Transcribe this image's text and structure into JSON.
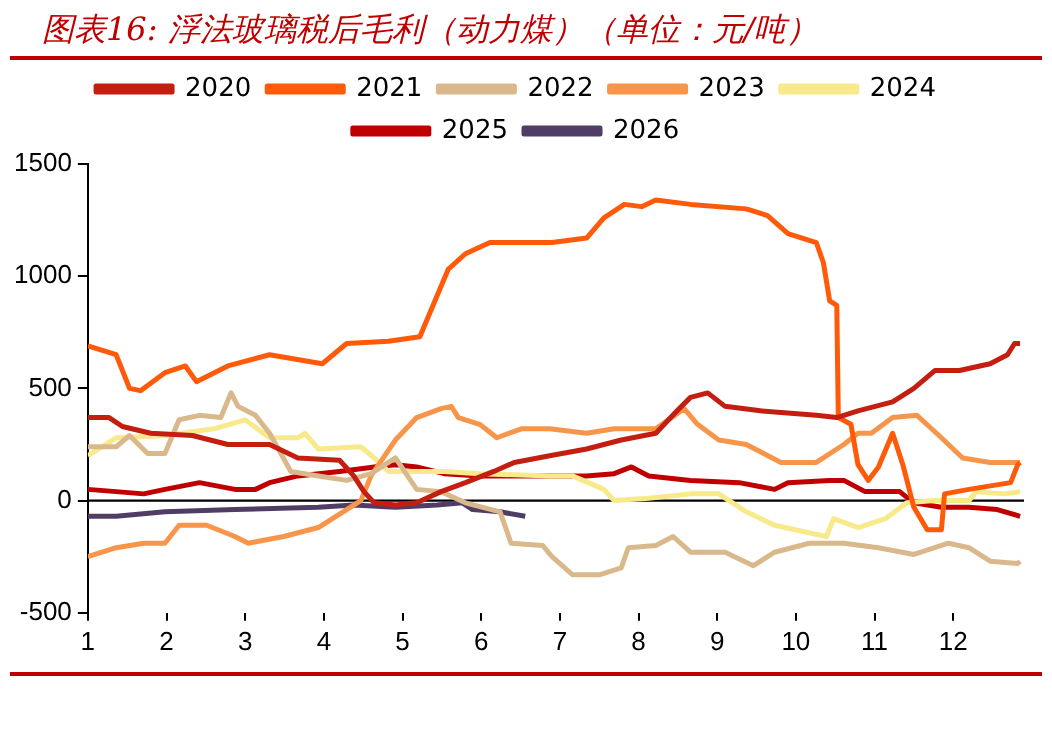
{
  "chart_data": {
    "type": "line",
    "title": "图表16:  浮法玻璃税后毛利（动力煤）（单位：元/吨）",
    "xlim": [
      1,
      12.9
    ],
    "xticks": [
      1,
      2,
      3,
      4,
      5,
      6,
      7,
      8,
      9,
      10,
      11,
      12
    ],
    "ylim": [
      -500,
      1500
    ],
    "yticks": [
      -500,
      0,
      500,
      1000,
      1500
    ],
    "grid": false,
    "ref_lines": [
      {
        "axis": "y",
        "value": 0,
        "color": "#000000"
      }
    ],
    "legend": "top",
    "line_style": "solid",
    "marker": "none",
    "series": [
      {
        "name": "2020",
        "color": "#c41e10",
        "x": [
          1,
          1.27,
          1.44,
          1.8,
          2.33,
          2.78,
          3.31,
          3.67,
          4.2,
          4.38,
          4.51,
          4.64,
          4.91,
          5.18,
          5.49,
          5.8,
          6.16,
          6.42,
          6.87,
          7.34,
          7.78,
          8.22,
          8.49,
          8.66,
          8.88,
          9.1,
          9.55,
          10.26,
          10.52,
          10.79,
          11.23,
          11.5,
          11.77,
          12.08,
          12.47,
          12.69,
          12.78,
          12.85
        ],
        "values": [
          370,
          370,
          330,
          300,
          290,
          250,
          250,
          190,
          180,
          110,
          40,
          -10,
          -20,
          -10,
          40,
          80,
          130,
          170,
          200,
          230,
          270,
          300,
          400,
          460,
          480,
          420,
          400,
          380,
          370,
          400,
          440,
          500,
          580,
          580,
          610,
          650,
          700,
          700
        ]
      },
      {
        "name": "2021",
        "color": "#ff5a0a",
        "x": [
          1,
          1.36,
          1.53,
          1.67,
          1.98,
          2.24,
          2.38,
          2.78,
          3.31,
          3.98,
          4.29,
          4.82,
          5.22,
          5.58,
          5.8,
          6.11,
          6.9,
          7.34,
          7.56,
          7.82,
          8.04,
          8.22,
          8.66,
          9.37,
          9.64,
          9.9,
          10.26,
          10.35,
          10.43,
          10.52,
          10.54,
          10.7,
          10.79,
          10.92,
          11.05,
          11.23,
          11.36,
          11.5,
          11.67,
          11.85,
          11.89,
          12.2,
          12.73,
          12.82,
          12.85
        ],
        "values": [
          690,
          650,
          500,
          490,
          570,
          600,
          530,
          600,
          650,
          610,
          700,
          710,
          730,
          1030,
          1100,
          1150,
          1150,
          1170,
          1260,
          1320,
          1310,
          1340,
          1320,
          1300,
          1270,
          1190,
          1150,
          1060,
          890,
          870,
          370,
          340,
          160,
          90,
          150,
          300,
          160,
          -30,
          -130,
          -130,
          30,
          50,
          80,
          160,
          170
        ]
      },
      {
        "name": "2022",
        "color": "#d9b98c",
        "x": [
          1,
          1.36,
          1.53,
          1.76,
          1.98,
          2.16,
          2.42,
          2.69,
          2.82,
          2.91,
          3.13,
          3.31,
          3.58,
          3.93,
          4.29,
          4.6,
          4.91,
          5.18,
          5.49,
          5.8,
          6.24,
          6.38,
          6.78,
          6.9,
          7.16,
          7.51,
          7.78,
          7.87,
          8.22,
          8.44,
          8.66,
          9.1,
          9.46,
          9.73,
          10.17,
          10.61,
          11.05,
          11.5,
          11.94,
          12.2,
          12.47,
          12.82,
          12.85
        ],
        "values": [
          240,
          240,
          290,
          210,
          210,
          360,
          380,
          370,
          480,
          420,
          380,
          300,
          130,
          110,
          90,
          120,
          190,
          50,
          40,
          -10,
          -50,
          -190,
          -200,
          -250,
          -330,
          -330,
          -300,
          -210,
          -200,
          -160,
          -230,
          -230,
          -290,
          -230,
          -190,
          -190,
          -210,
          -240,
          -190,
          -210,
          -270,
          -280,
          -270
        ]
      },
      {
        "name": "2023",
        "color": "#f7964a",
        "x": [
          1,
          1.36,
          1.71,
          1.98,
          2.16,
          2.51,
          2.87,
          3.04,
          3.49,
          3.93,
          4.29,
          4.47,
          4.6,
          4.91,
          5.18,
          5.49,
          5.62,
          5.71,
          5.98,
          6.2,
          6.51,
          6.87,
          7.34,
          7.69,
          8.22,
          8.58,
          8.75,
          9.02,
          9.37,
          9.81,
          10.26,
          10.61,
          10.79,
          10.96,
          11.23,
          11.54,
          11.85,
          12.12,
          12.47,
          12.85
        ],
        "values": [
          -250,
          -210,
          -190,
          -190,
          -110,
          -110,
          -160,
          -190,
          -160,
          -120,
          -40,
          0,
          110,
          270,
          370,
          410,
          420,
          370,
          340,
          280,
          320,
          320,
          300,
          320,
          320,
          410,
          340,
          270,
          250,
          170,
          170,
          250,
          300,
          300,
          370,
          380,
          280,
          190,
          170,
          170
        ]
      },
      {
        "name": "2024",
        "color": "#f8e98a",
        "x": [
          1,
          1.36,
          1.98,
          2.6,
          3,
          3.31,
          3.67,
          3.76,
          3.93,
          4.47,
          4.64,
          4.82,
          5.09,
          5.53,
          5.98,
          6.87,
          7.16,
          7.56,
          7.69,
          8.13,
          8.66,
          9.02,
          9.37,
          9.73,
          9.99,
          10.39,
          10.48,
          10.79,
          11.14,
          11.41,
          11.76,
          12.2,
          12.29,
          12.65,
          12.85
        ],
        "values": [
          200,
          280,
          290,
          320,
          360,
          280,
          280,
          300,
          230,
          240,
          190,
          130,
          130,
          130,
          120,
          110,
          110,
          50,
          0,
          10,
          30,
          30,
          -50,
          -110,
          -130,
          -160,
          -80,
          -120,
          -80,
          -10,
          0,
          0,
          40,
          30,
          40
        ]
      },
      {
        "name": "2025",
        "color": "#c00000",
        "x": [
          1,
          1.36,
          1.71,
          1.98,
          2.42,
          2.87,
          3.13,
          3.31,
          3.67,
          4.2,
          4.64,
          4.91,
          5.18,
          5.53,
          5.98,
          6.51,
          7.34,
          7.69,
          7.91,
          8.13,
          8.66,
          9.28,
          9.73,
          9.9,
          10.43,
          10.61,
          10.88,
          11.32,
          11.5,
          11.85,
          12.2,
          12.56,
          12.85
        ],
        "values": [
          50,
          40,
          30,
          50,
          80,
          50,
          50,
          80,
          110,
          130,
          150,
          160,
          150,
          120,
          110,
          110,
          110,
          120,
          150,
          110,
          90,
          80,
          50,
          80,
          90,
          90,
          40,
          40,
          -10,
          -30,
          -30,
          -40,
          -70
        ]
      },
      {
        "name": "2026",
        "color": "#4f3d66",
        "x": [
          1,
          1.36,
          1.98,
          2.87,
          3.93,
          4.38,
          4.91,
          5.44,
          5.76,
          5.89,
          6.24,
          6.56
        ],
        "values": [
          -70,
          -70,
          -50,
          -40,
          -30,
          -20,
          -30,
          -20,
          -10,
          -40,
          -50,
          -70
        ]
      }
    ]
  }
}
